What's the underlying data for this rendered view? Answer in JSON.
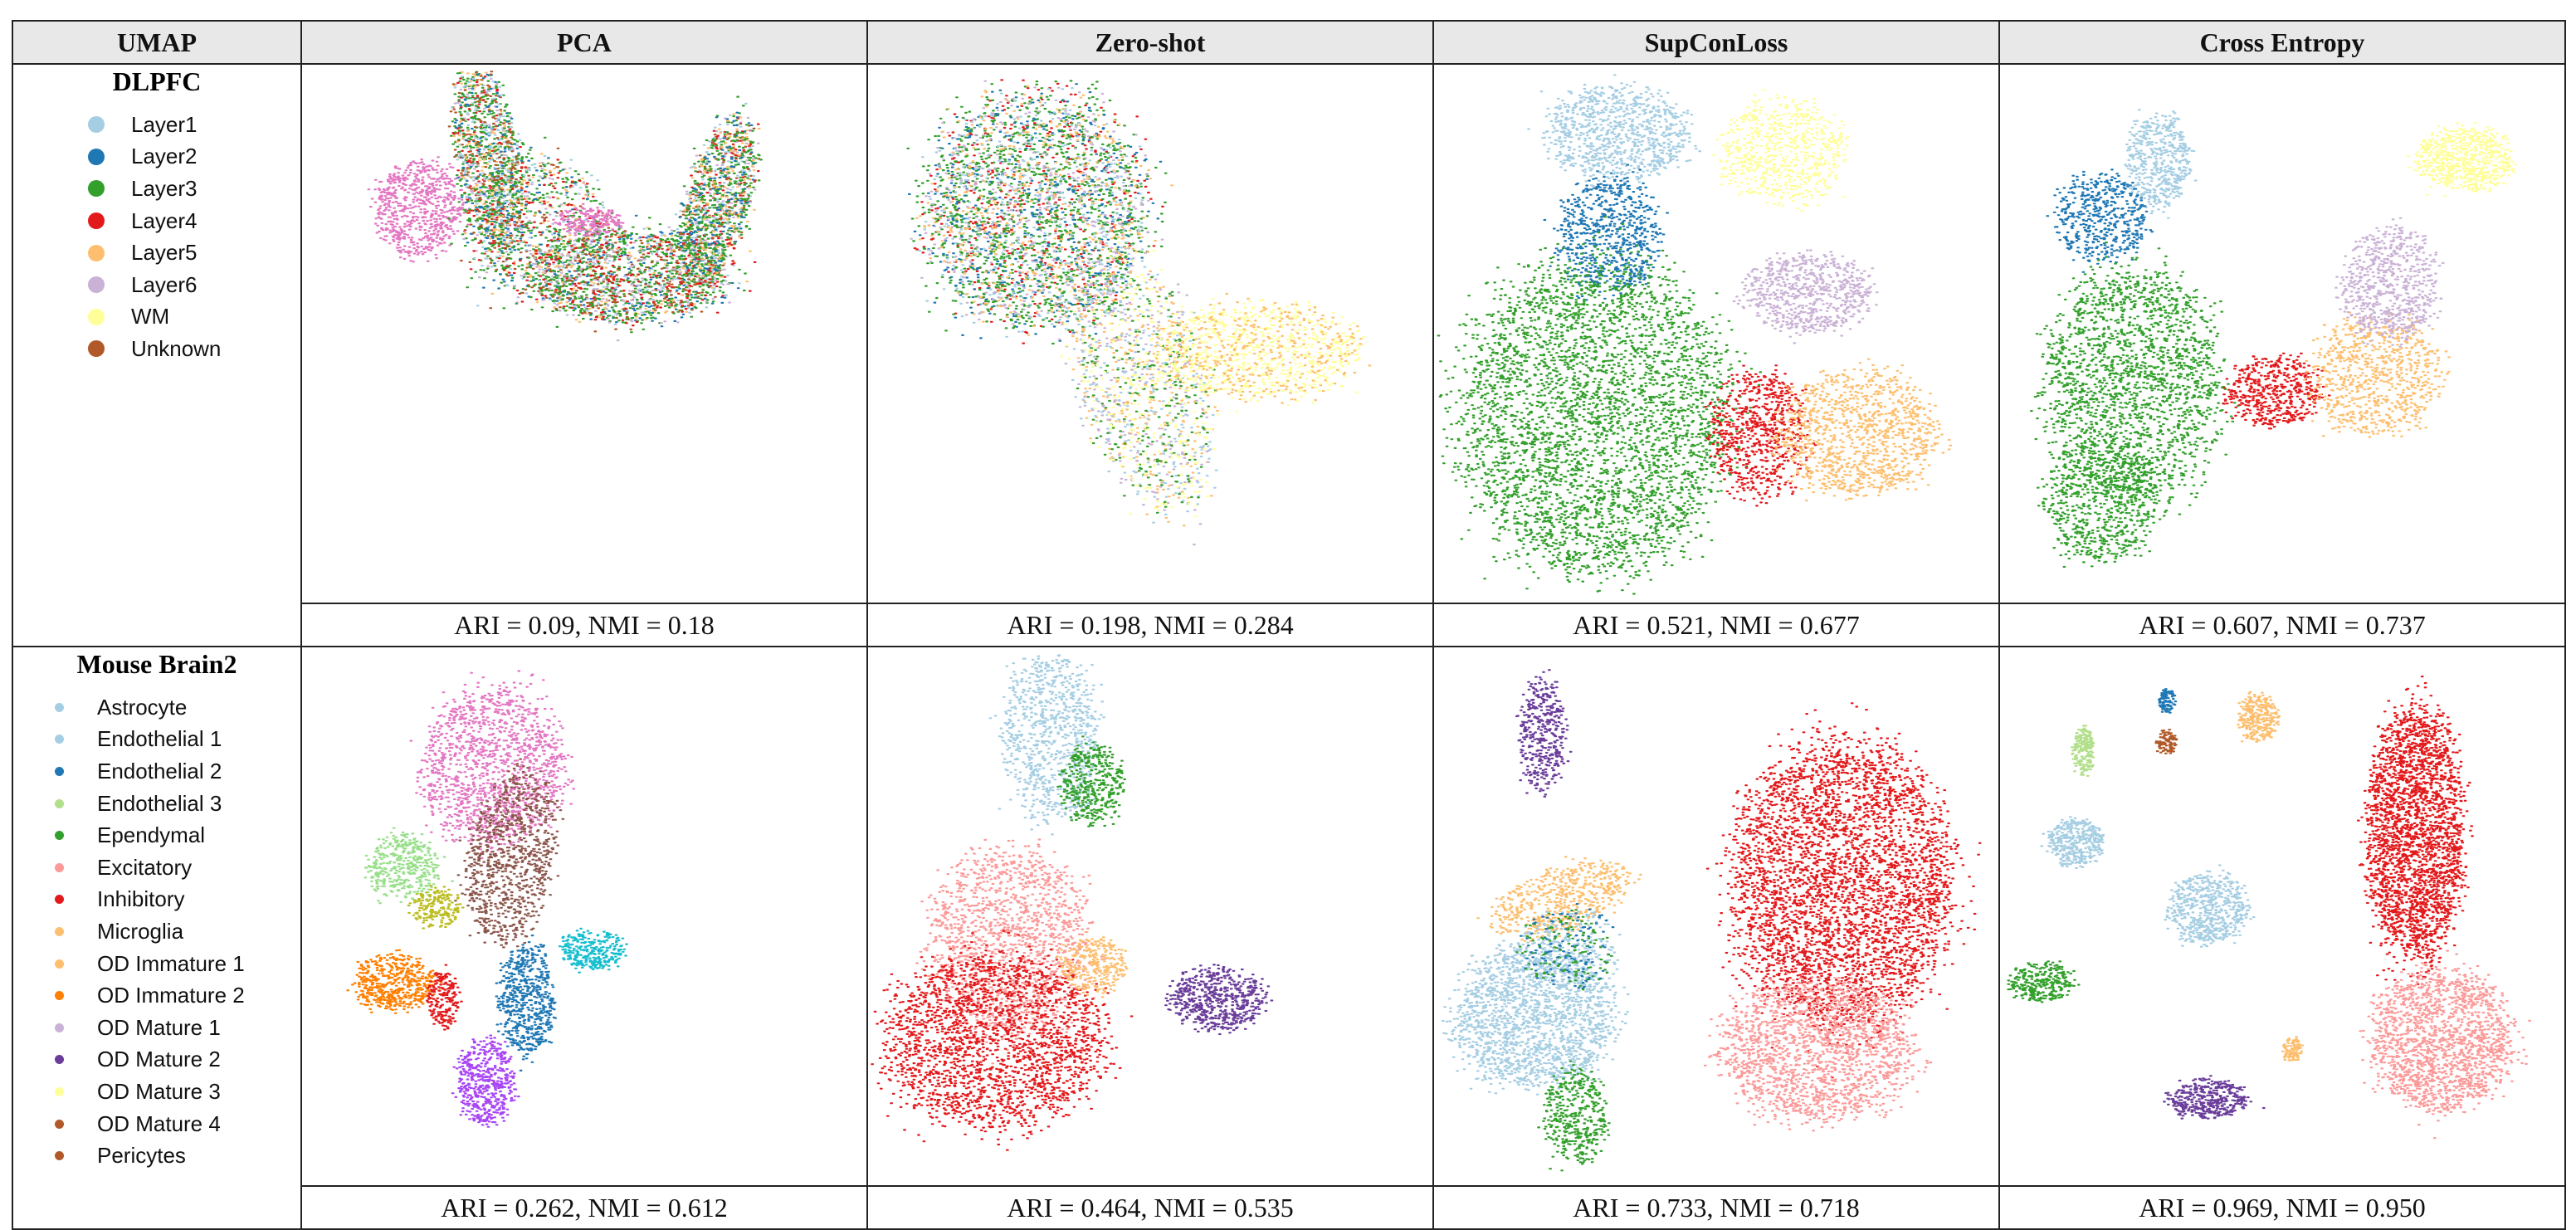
{
  "header": {
    "corner": "UMAP",
    "methods": [
      "PCA",
      "Zero-shot",
      "SupConLoss",
      "Cross Entropy"
    ]
  },
  "datasets": [
    {
      "title": "DLPFC",
      "legend": [
        {
          "label": "Layer1",
          "color": "#a6cee3"
        },
        {
          "label": "Layer2",
          "color": "#1f78b4"
        },
        {
          "label": "Layer3",
          "color": "#33a02c"
        },
        {
          "label": "Layer4",
          "color": "#e31a1c"
        },
        {
          "label": "Layer5",
          "color": "#fdbf6f"
        },
        {
          "label": "Layer6",
          "color": "#cab2d6"
        },
        {
          "label": "WM",
          "color": "#ffff99"
        },
        {
          "label": "Unknown",
          "color": "#b15928"
        }
      ],
      "metrics": [
        "ARI = 0.09, NMI = 0.18",
        "ARI = 0.198, NMI = 0.284",
        "ARI = 0.521, NMI = 0.677",
        "ARI = 0.607, NMI = 0.737"
      ]
    },
    {
      "title": "Mouse Brain2",
      "legend": [
        {
          "label": "Astrocyte",
          "color": "#a6cee3"
        },
        {
          "label": "Endothelial 1",
          "color": "#a6cee3"
        },
        {
          "label": "Endothelial 2",
          "color": "#1f78b4"
        },
        {
          "label": "Endothelial 3",
          "color": "#b2df8a"
        },
        {
          "label": "Ependymal",
          "color": "#33a02c"
        },
        {
          "label": "Excitatory",
          "color": "#fb9a99"
        },
        {
          "label": "Inhibitory",
          "color": "#e31a1c"
        },
        {
          "label": "Microglia",
          "color": "#fdbf6f"
        },
        {
          "label": "OD Immature 1",
          "color": "#fdbf6f"
        },
        {
          "label": "OD Immature 2",
          "color": "#ff7f00"
        },
        {
          "label": "OD Mature 1",
          "color": "#cab2d6"
        },
        {
          "label": "OD Mature 2",
          "color": "#6a3d9a"
        },
        {
          "label": "OD Mature 3",
          "color": "#ffff99"
        },
        {
          "label": "OD Mature 4",
          "color": "#b15928"
        },
        {
          "label": "Pericytes",
          "color": "#b15928"
        }
      ],
      "metrics": [
        "ARI = 0.262, NMI = 0.612",
        "ARI = 0.464, NMI = 0.535",
        "ARI = 0.733, NMI = 0.718",
        "ARI = 0.969, NMI = 0.950"
      ]
    }
  ]
}
